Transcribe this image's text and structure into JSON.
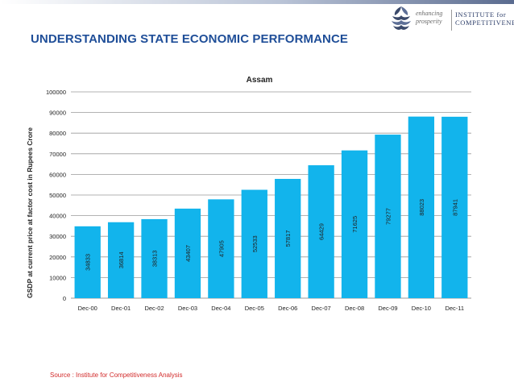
{
  "header": {
    "page_title": "UNDERSTANDING STATE ECONOMIC PERFORMANCE",
    "logo": {
      "tagline": "enhancing prosperity",
      "name_line1": "INSTITUTE for",
      "name_line2": "COMPETITIVENESS",
      "icon": "stacked-leaves-icon"
    }
  },
  "footer": {
    "source": "Source : Institute for Competitiveness Analysis"
  },
  "colors": {
    "bar": "#12b4ec",
    "title": "#1f4e98",
    "source": "#d22b2b"
  },
  "chart_data": {
    "type": "bar",
    "title": "Assam",
    "ylabel": "GSDP at current price at factor cost in Rupees Crore",
    "xlabel": "",
    "categories": [
      "Dec-00",
      "Dec-01",
      "Dec-02",
      "Dec-03",
      "Dec-04",
      "Dec-05",
      "Dec-06",
      "Dec-07",
      "Dec-08",
      "Dec-09",
      "Dec-10",
      "Dec-11"
    ],
    "values": [
      34833,
      36814,
      38313,
      43407,
      47905,
      52533,
      57817,
      64429,
      71625,
      79277,
      88023,
      87941
    ],
    "ylim": [
      0,
      100000
    ],
    "yticks": [
      0,
      10000,
      20000,
      30000,
      40000,
      50000,
      60000,
      70000,
      80000,
      90000,
      100000
    ],
    "grid": true,
    "legend": "none",
    "data_labels": "inside-rotated"
  }
}
